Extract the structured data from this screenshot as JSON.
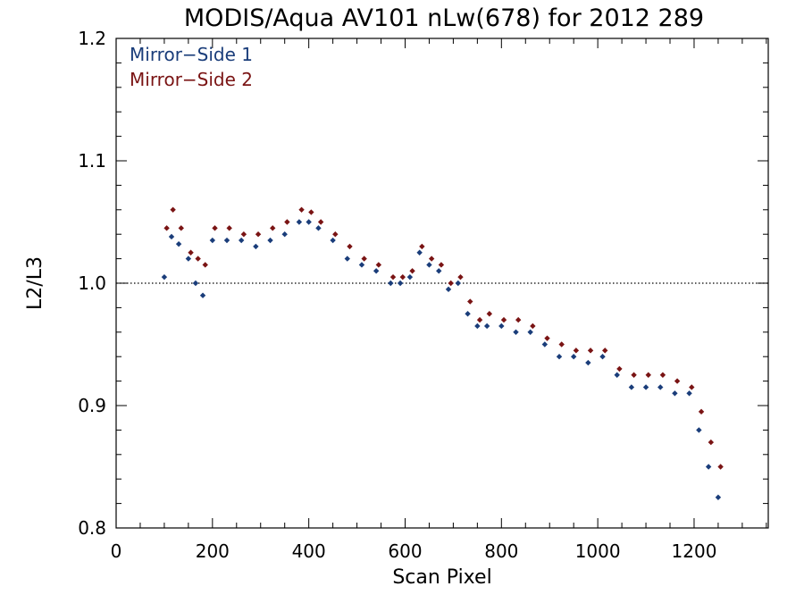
{
  "chart_data": {
    "type": "scatter",
    "title": "MODIS/Aqua AV101 nLw(678) for 2012 289",
    "xlabel": "Scan Pixel",
    "ylabel": "L2/L3",
    "xlim": [
      0,
      1354
    ],
    "ylim": [
      0.8,
      1.2
    ],
    "x_ticks": [
      0,
      200,
      400,
      600,
      800,
      1000,
      1200
    ],
    "x_tick_labels": [
      "0",
      "200",
      "400",
      "600",
      "800",
      "1000",
      "1200"
    ],
    "y_ticks": [
      0.8,
      0.9,
      1.0,
      1.1,
      1.2
    ],
    "y_tick_labels": [
      "0.8",
      "0.9",
      "1.0",
      "1.1",
      "1.2"
    ],
    "reference_line": {
      "y": 1.0,
      "style": "dotted"
    },
    "legend_position": "top-left",
    "grid": false,
    "series": [
      {
        "name": "Mirror−Side 1",
        "color": "#1a3d7a",
        "x": [
          100,
          115,
          130,
          150,
          165,
          180,
          200,
          230,
          260,
          290,
          320,
          350,
          380,
          400,
          420,
          450,
          480,
          510,
          540,
          570,
          590,
          610,
          630,
          650,
          670,
          690,
          710,
          730,
          750,
          770,
          800,
          830,
          860,
          890,
          920,
          950,
          980,
          1010,
          1040,
          1070,
          1100,
          1130,
          1160,
          1190,
          1210,
          1230,
          1250
        ],
        "y": [
          1.005,
          1.038,
          1.032,
          1.02,
          1.0,
          0.99,
          1.035,
          1.035,
          1.035,
          1.03,
          1.035,
          1.04,
          1.05,
          1.05,
          1.045,
          1.035,
          1.02,
          1.015,
          1.01,
          1.0,
          1.0,
          1.005,
          1.025,
          1.015,
          1.01,
          0.995,
          1.0,
          0.975,
          0.965,
          0.965,
          0.965,
          0.96,
          0.96,
          0.95,
          0.94,
          0.94,
          0.935,
          0.94,
          0.925,
          0.915,
          0.915,
          0.915,
          0.91,
          0.91,
          0.88,
          0.85,
          0.825
        ]
      },
      {
        "name": "Mirror−Side 2",
        "color": "#7a1414",
        "x": [
          105,
          118,
          135,
          155,
          170,
          185,
          205,
          235,
          265,
          295,
          325,
          355,
          385,
          405,
          425,
          455,
          485,
          515,
          545,
          575,
          595,
          615,
          635,
          655,
          675,
          695,
          715,
          735,
          755,
          775,
          805,
          835,
          865,
          895,
          925,
          955,
          985,
          1015,
          1045,
          1075,
          1105,
          1135,
          1165,
          1195,
          1215,
          1235,
          1255
        ],
        "y": [
          1.045,
          1.06,
          1.045,
          1.025,
          1.02,
          1.015,
          1.045,
          1.045,
          1.04,
          1.04,
          1.045,
          1.05,
          1.06,
          1.058,
          1.05,
          1.04,
          1.03,
          1.02,
          1.015,
          1.005,
          1.005,
          1.01,
          1.03,
          1.02,
          1.015,
          1.0,
          1.005,
          0.985,
          0.97,
          0.975,
          0.97,
          0.97,
          0.965,
          0.955,
          0.95,
          0.945,
          0.945,
          0.945,
          0.93,
          0.925,
          0.925,
          0.925,
          0.92,
          0.915,
          0.895,
          0.87,
          0.85
        ]
      }
    ]
  }
}
